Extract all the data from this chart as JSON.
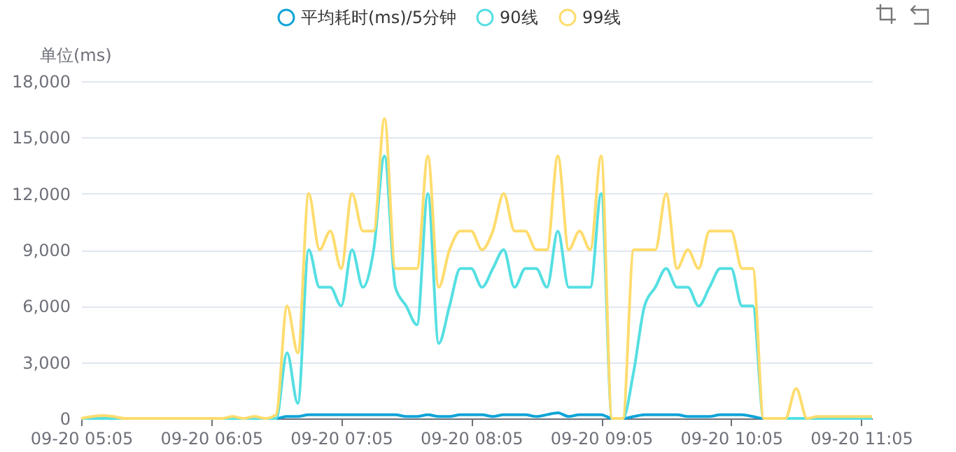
{
  "chart_data": {
    "type": "line",
    "ylabel": "单位(ms)",
    "categories": [
      "09-20 05:05",
      null,
      null,
      null,
      null,
      null,
      null,
      null,
      null,
      null,
      null,
      null,
      "09-20 06:05",
      null,
      null,
      null,
      null,
      null,
      null,
      null,
      null,
      null,
      null,
      null,
      "09-20 07:05",
      null,
      null,
      null,
      null,
      null,
      null,
      null,
      null,
      null,
      null,
      null,
      "09-20 08:05",
      null,
      null,
      null,
      null,
      null,
      null,
      null,
      null,
      null,
      null,
      null,
      "09-20 09:05",
      null,
      null,
      null,
      null,
      null,
      null,
      null,
      null,
      null,
      null,
      null,
      "09-20 10:05",
      null,
      null,
      null,
      null,
      null,
      null,
      null,
      null,
      null,
      null,
      null,
      "09-20 11:05",
      null
    ],
    "series": [
      {
        "name": "平均耗时(ms)/5分钟",
        "color": "#10a4d8",
        "values": [
          0,
          0,
          0,
          0,
          0,
          0,
          0,
          0,
          0,
          0,
          0,
          0,
          0,
          0,
          0,
          0,
          0,
          0,
          0,
          100,
          100,
          200,
          200,
          200,
          200,
          200,
          200,
          200,
          200,
          200,
          100,
          100,
          200,
          100,
          100,
          200,
          200,
          200,
          100,
          200,
          200,
          200,
          100,
          200,
          300,
          100,
          200,
          200,
          200,
          0,
          0,
          100,
          200,
          200,
          200,
          200,
          100,
          100,
          100,
          200,
          200,
          200,
          100,
          0,
          0,
          null,
          null,
          null,
          null,
          null,
          null,
          null,
          null,
          null
        ]
      },
      {
        "name": "90线",
        "color": "#55dfe2",
        "values": [
          0,
          0,
          0,
          0,
          0,
          0,
          0,
          0,
          0,
          0,
          0,
          0,
          0,
          0,
          0,
          0,
          0,
          0,
          0,
          3500,
          800,
          9000,
          7000,
          7000,
          6000,
          9000,
          7000,
          9000,
          14000,
          7000,
          6000,
          5000,
          12000,
          4000,
          6000,
          8000,
          8000,
          7000,
          8000,
          9000,
          7000,
          8000,
          8000,
          7000,
          10000,
          7000,
          7000,
          7000,
          12000,
          0,
          0,
          2500,
          6000,
          7000,
          8000,
          7000,
          7000,
          6000,
          7000,
          8000,
          8000,
          6000,
          6000,
          0,
          0,
          0,
          0,
          0,
          0,
          0,
          0,
          0,
          0,
          0
        ]
      },
      {
        "name": "99线",
        "color": "#fedc6e",
        "values": [
          0,
          100,
          150,
          100,
          0,
          0,
          0,
          0,
          0,
          0,
          0,
          0,
          0,
          0,
          100,
          0,
          100,
          0,
          200,
          6000,
          3500,
          12000,
          9000,
          10000,
          8000,
          12000,
          10000,
          10000,
          16000,
          8000,
          8000,
          8000,
          14000,
          7000,
          9000,
          10000,
          10000,
          9000,
          10000,
          12000,
          10000,
          10000,
          9000,
          9000,
          14000,
          9000,
          10000,
          9000,
          14000,
          0,
          0,
          9000,
          9000,
          9000,
          12000,
          8000,
          9000,
          8000,
          10000,
          10000,
          10000,
          8000,
          8000,
          0,
          0,
          0,
          1600,
          0,
          100,
          100,
          100,
          100,
          100,
          100
        ]
      }
    ],
    "ylim": [
      0,
      18000
    ],
    "yticks": [
      0,
      {
        "value": 3000,
        "label": "3,000"
      },
      {
        "value": 6000,
        "label": "6,000"
      },
      {
        "value": 9000,
        "label": "9,000"
      },
      {
        "value": 12000,
        "label": "12,000"
      },
      {
        "value": 15000,
        "label": "15,000"
      },
      {
        "value": 18000,
        "label": "18,000"
      }
    ],
    "grid": "y",
    "legend": "top",
    "marker": "none",
    "line_style": "solid"
  }
}
